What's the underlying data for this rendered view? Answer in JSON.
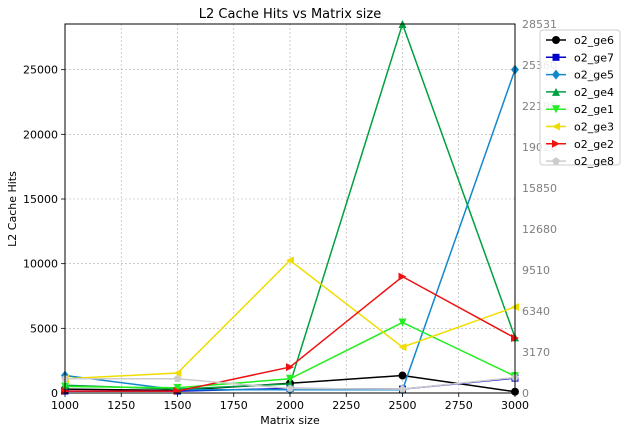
{
  "chart_data": {
    "type": "line",
    "title": "L2 Cache Hits vs Matrix size",
    "xlabel": "Matrix size",
    "ylabel": "L2 Cache Hits",
    "x": [
      1000,
      1500,
      2000,
      2500,
      3000
    ],
    "xlim": [
      1000,
      3000
    ],
    "ylim": [
      0,
      28531
    ],
    "xticks": [
      "1000",
      "1250",
      "1500",
      "1750",
      "2000",
      "2250",
      "2500",
      "2750",
      "3000"
    ],
    "yticks": [
      "0",
      "5000",
      "10000",
      "15000",
      "20000",
      "25000"
    ],
    "right_yticks": [
      "0",
      "3170",
      "6340",
      "9510",
      "12680",
      "15850",
      "19020",
      "22190",
      "25360",
      "28531"
    ],
    "grid": true,
    "legend_position": "upper-right-outside",
    "series": [
      {
        "name": "o2_ge6",
        "color": "#000000",
        "marker": "circle",
        "values": [
          300,
          200,
          750,
          1350,
          100
        ]
      },
      {
        "name": "o2_ge7",
        "color": "#0000cc",
        "marker": "square",
        "values": [
          150,
          150,
          350,
          300,
          1150
        ]
      },
      {
        "name": "o2_ge5",
        "color": "#1188cc",
        "marker": "diamond",
        "values": [
          1350,
          250,
          250,
          250,
          25000
        ]
      },
      {
        "name": "o2_ge4",
        "color": "#00a040",
        "marker": "triangle-up",
        "values": [
          600,
          300,
          700,
          28531,
          4300
        ]
      },
      {
        "name": "o2_ge1",
        "color": "#22ee22",
        "marker": "triangle-down",
        "values": [
          500,
          400,
          1100,
          5450,
          1300
        ]
      },
      {
        "name": "o2_ge3",
        "color": "#f0dd00",
        "marker": "triangle-left",
        "values": [
          1100,
          1550,
          10250,
          3550,
          6650
        ]
      },
      {
        "name": "o2_ge2",
        "color": "#ee1111",
        "marker": "triangle-right",
        "values": [
          150,
          150,
          2000,
          9000,
          4250
        ]
      },
      {
        "name": "o2_ge8",
        "color": "#cccccc",
        "marker": "pentagon",
        "values": [
          1100,
          1100,
          350,
          300,
          1200
        ]
      }
    ]
  }
}
